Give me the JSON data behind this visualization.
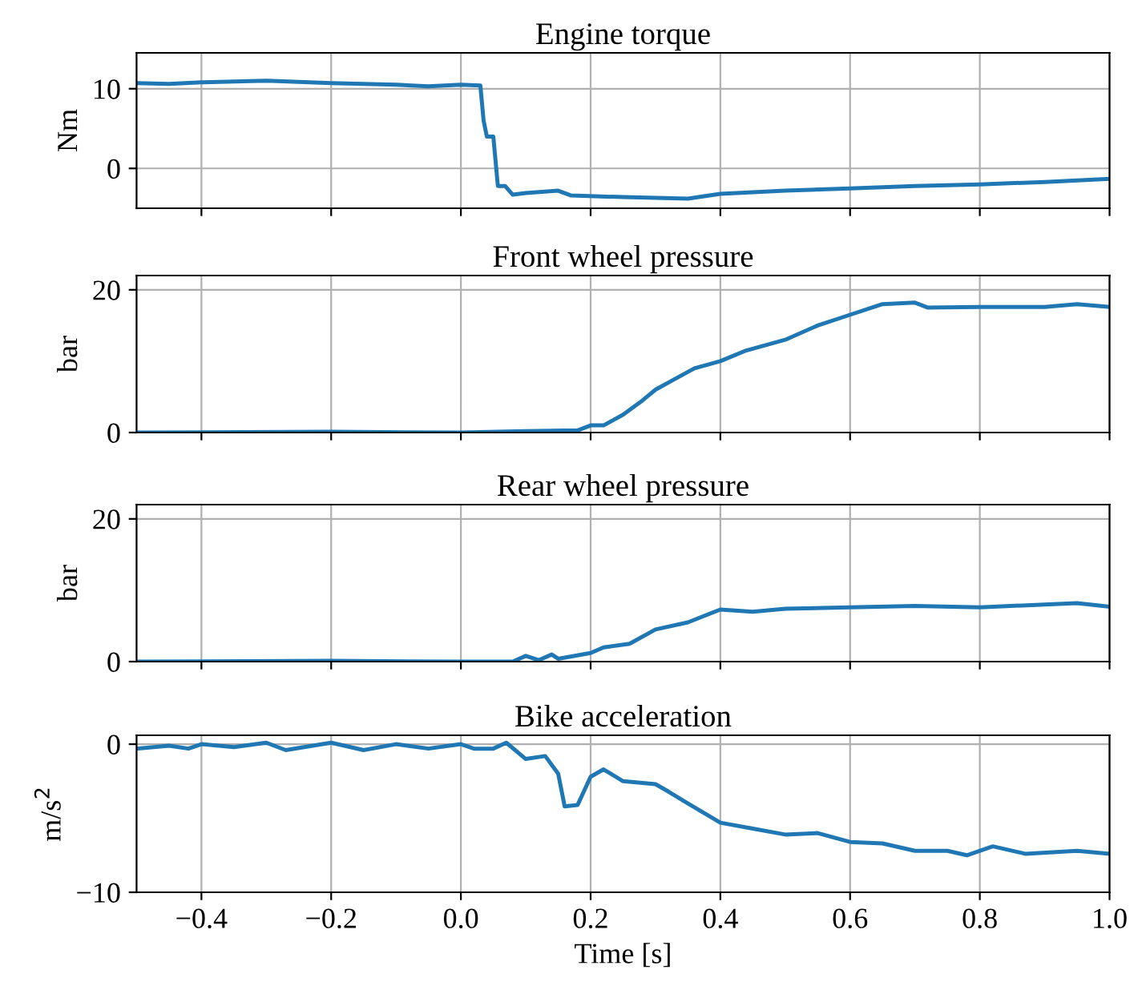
{
  "chart_data": [
    {
      "type": "line",
      "title": "Engine torque",
      "ylabel": "Nm",
      "grid": true,
      "tick_labels": "y",
      "xlim": [
        -0.5,
        1.0
      ],
      "ylim": [
        -5,
        14.5
      ],
      "yticks": [
        0,
        10
      ],
      "x": [
        -0.5,
        -0.45,
        -0.4,
        -0.3,
        -0.2,
        -0.1,
        -0.05,
        0.0,
        0.03,
        0.035,
        0.04,
        0.05,
        0.057,
        0.068,
        0.08,
        0.1,
        0.15,
        0.17,
        0.25,
        0.35,
        0.4,
        0.5,
        0.6,
        0.7,
        0.8,
        0.9,
        1.0
      ],
      "series": [
        {
          "color": "#1f77b4",
          "values": [
            10.7,
            10.6,
            10.8,
            11.0,
            10.7,
            10.5,
            10.3,
            10.5,
            10.4,
            6,
            4,
            4,
            -2.2,
            -2.2,
            -3.3,
            -3.1,
            -2.8,
            -3.4,
            -3.6,
            -3.8,
            -3.2,
            -2.8,
            -2.5,
            -2.2,
            -2.0,
            -1.7,
            -1.3
          ]
        }
      ]
    },
    {
      "type": "line",
      "title": "Front wheel pressure",
      "ylabel": "bar",
      "grid": true,
      "tick_labels": "y",
      "xlim": [
        -0.5,
        1.0
      ],
      "ylim": [
        0,
        22
      ],
      "yticks": [
        0,
        20
      ],
      "x": [
        -0.5,
        -0.2,
        0.0,
        0.1,
        0.18,
        0.2,
        0.22,
        0.25,
        0.28,
        0.3,
        0.33,
        0.36,
        0.4,
        0.44,
        0.5,
        0.55,
        0.6,
        0.65,
        0.7,
        0.72,
        0.8,
        0.9,
        0.95,
        1.0
      ],
      "series": [
        {
          "color": "#1f77b4",
          "values": [
            0,
            0.1,
            0,
            0.2,
            0.3,
            1.0,
            1.0,
            2.5,
            4.5,
            6,
            7.5,
            9,
            10,
            11.5,
            13,
            15,
            16.5,
            18,
            18.2,
            17.5,
            17.6,
            17.6,
            18,
            17.6
          ]
        }
      ]
    },
    {
      "type": "line",
      "title": "Rear wheel pressure",
      "ylabel": "bar",
      "grid": true,
      "tick_labels": "y",
      "xlim": [
        -0.5,
        1.0
      ],
      "ylim": [
        0,
        22
      ],
      "yticks": [
        0,
        20
      ],
      "x": [
        -0.5,
        -0.2,
        0.0,
        0.08,
        0.1,
        0.12,
        0.14,
        0.15,
        0.2,
        0.22,
        0.26,
        0.3,
        0.35,
        0.4,
        0.45,
        0.5,
        0.6,
        0.7,
        0.8,
        0.9,
        0.95,
        1.0
      ],
      "series": [
        {
          "color": "#1f77b4",
          "values": [
            0,
            0.1,
            0,
            0,
            0.8,
            0.2,
            1.0,
            0.4,
            1.2,
            2,
            2.5,
            4.5,
            5.5,
            7.3,
            7.0,
            7.4,
            7.6,
            7.8,
            7.6,
            8,
            8.2,
            7.7
          ]
        }
      ]
    },
    {
      "type": "line",
      "title": "Bike acceleration",
      "ylabel": "m/s$^{2}$",
      "xlabel": "Time [s]",
      "grid": true,
      "xlim": [
        -0.5,
        1.0
      ],
      "xticks": [
        -0.4,
        -0.2,
        {
          "value": 0,
          "label": "0.0"
        },
        0.2,
        0.4,
        0.6,
        0.8,
        {
          "value": 1,
          "label": "1.0"
        }
      ],
      "ylim": [
        -10,
        0.6
      ],
      "yticks": [
        -10,
        0
      ],
      "x": [
        -0.5,
        -0.45,
        -0.42,
        -0.4,
        -0.35,
        -0.3,
        -0.27,
        -0.2,
        -0.15,
        -0.1,
        -0.05,
        0,
        0.02,
        0.05,
        0.07,
        0.1,
        0.13,
        0.15,
        0.16,
        0.18,
        0.2,
        0.22,
        0.25,
        0.3,
        0.32,
        0.35,
        0.4,
        0.45,
        0.5,
        0.55,
        0.6,
        0.65,
        0.7,
        0.75,
        0.78,
        0.82,
        0.87,
        0.95,
        1.0
      ],
      "series": [
        {
          "color": "#1f77b4",
          "values": [
            -0.3,
            -0.1,
            -0.3,
            0,
            -0.2,
            0.1,
            -0.4,
            0.1,
            -0.4,
            0,
            -0.3,
            0,
            -0.3,
            -0.3,
            0.1,
            -1.0,
            -0.8,
            -2,
            -4.2,
            -4.1,
            -2.2,
            -1.7,
            -2.5,
            -2.7,
            -3.2,
            -4,
            -5.3,
            -5.7,
            -6.1,
            -6.0,
            -6.6,
            -6.7,
            -7.2,
            -7.2,
            -7.5,
            -6.9,
            -7.4,
            -7.2,
            -7.4
          ]
        }
      ]
    }
  ]
}
